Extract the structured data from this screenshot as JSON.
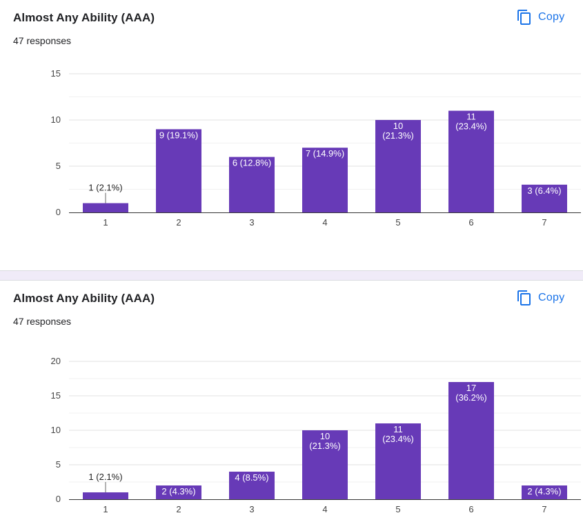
{
  "cards": [
    {
      "title": "Almost Any Ability (AAA)",
      "responses": "47 responses",
      "copy_label": "Copy",
      "copy_icon": "copy-icon"
    },
    {
      "title": "Almost Any Ability (AAA)",
      "responses": "47 responses",
      "copy_label": "Copy",
      "copy_icon": "copy-icon"
    }
  ],
  "colors": {
    "bar": "#673ab7",
    "accent": "#1a73e8",
    "separator": "#f0ebf8"
  },
  "chart_data": [
    {
      "type": "bar",
      "categories": [
        "1",
        "2",
        "3",
        "4",
        "5",
        "6",
        "7"
      ],
      "values": [
        1,
        9,
        6,
        7,
        10,
        11,
        3
      ],
      "data_labels": [
        "1 (2.1%)",
        "9 (19.1%)",
        "6 (12.8%)",
        "7 (14.9%)",
        "10\n(21.3%)",
        "11\n(23.4%)",
        "3 (6.4%)"
      ],
      "yticks": [
        0,
        5,
        10,
        15
      ],
      "ylim": [
        0,
        15
      ],
      "grid": true,
      "title": "",
      "xlabel": "",
      "ylabel": ""
    },
    {
      "type": "bar",
      "categories": [
        "1",
        "2",
        "3",
        "4",
        "5",
        "6",
        "7"
      ],
      "values": [
        1,
        2,
        4,
        10,
        11,
        17,
        2
      ],
      "data_labels": [
        "1 (2.1%)",
        "2 (4.3%)",
        "4 (8.5%)",
        "10\n(21.3%)",
        "11\n(23.4%)",
        "17\n(36.2%)",
        "2 (4.3%)"
      ],
      "yticks": [
        0,
        5,
        10,
        15,
        20
      ],
      "ylim": [
        0,
        20
      ],
      "grid": true,
      "title": "",
      "xlabel": "",
      "ylabel": ""
    }
  ]
}
